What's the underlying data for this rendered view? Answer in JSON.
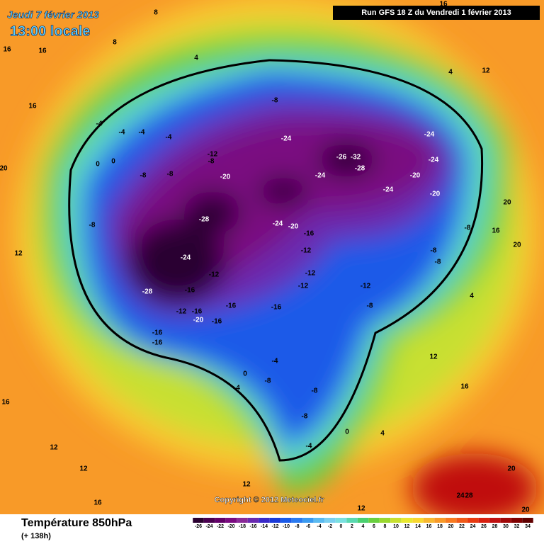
{
  "header": {
    "date": "Jeudi 7 février 2013",
    "time": "13:00 locale",
    "run": "Run GFS 18 Z du Vendredi 1 février 2013"
  },
  "map": {
    "copyright": "Copyright © 2012 Meteociel.fr",
    "contour_labels": [
      16,
      16,
      16,
      20,
      8,
      8,
      4,
      16,
      12,
      4,
      -8,
      -4,
      -4,
      -4,
      -4,
      -12,
      -8,
      0,
      -8,
      -8,
      -20,
      0,
      -24,
      -26,
      -32,
      -28,
      -24,
      -24,
      -24,
      -20,
      -20,
      -24,
      -28,
      -24,
      -20,
      -16,
      -12,
      -24,
      -12,
      -16,
      -28,
      -12,
      -12,
      -12,
      -8,
      -8,
      -8,
      -8,
      -16,
      -16,
      -12,
      -16,
      -20,
      -16,
      -16,
      -16,
      -4,
      -8,
      -8,
      -8,
      0,
      -4,
      4,
      4,
      0,
      16,
      12,
      12,
      16,
      12,
      12,
      20,
      20,
      24,
      28,
      16,
      12,
      16,
      20,
      12,
      -8,
      4,
      20
    ]
  },
  "footer": {
    "variable": "Température 850hPa",
    "lead": "(+ 138h)"
  },
  "legend": {
    "ticks": [
      -26,
      -24,
      -22,
      -20,
      -18,
      -16,
      -14,
      -12,
      -10,
      -8,
      -6,
      -4,
      -2,
      0,
      2,
      4,
      6,
      8,
      10,
      12,
      14,
      16,
      18,
      20,
      22,
      24,
      26,
      28,
      30,
      32,
      34
    ],
    "colors": [
      "#2a0030",
      "#4a0050",
      "#620068",
      "#7a0a80",
      "#8a2a98",
      "#6a2ab0",
      "#3a2ac8",
      "#1a3ad8",
      "#1a5ae8",
      "#2a7af0",
      "#3a9af0",
      "#5abaf0",
      "#7ad0f0",
      "#7ae0e0",
      "#5ad8b0",
      "#4ad070",
      "#6ad040",
      "#9ad830",
      "#c8e030",
      "#e8e830",
      "#f8d830",
      "#f8b830",
      "#f89a28",
      "#f87a20",
      "#f05a18",
      "#e83a10",
      "#d82010",
      "#c01010",
      "#a00808",
      "#800000",
      "#600000"
    ]
  }
}
